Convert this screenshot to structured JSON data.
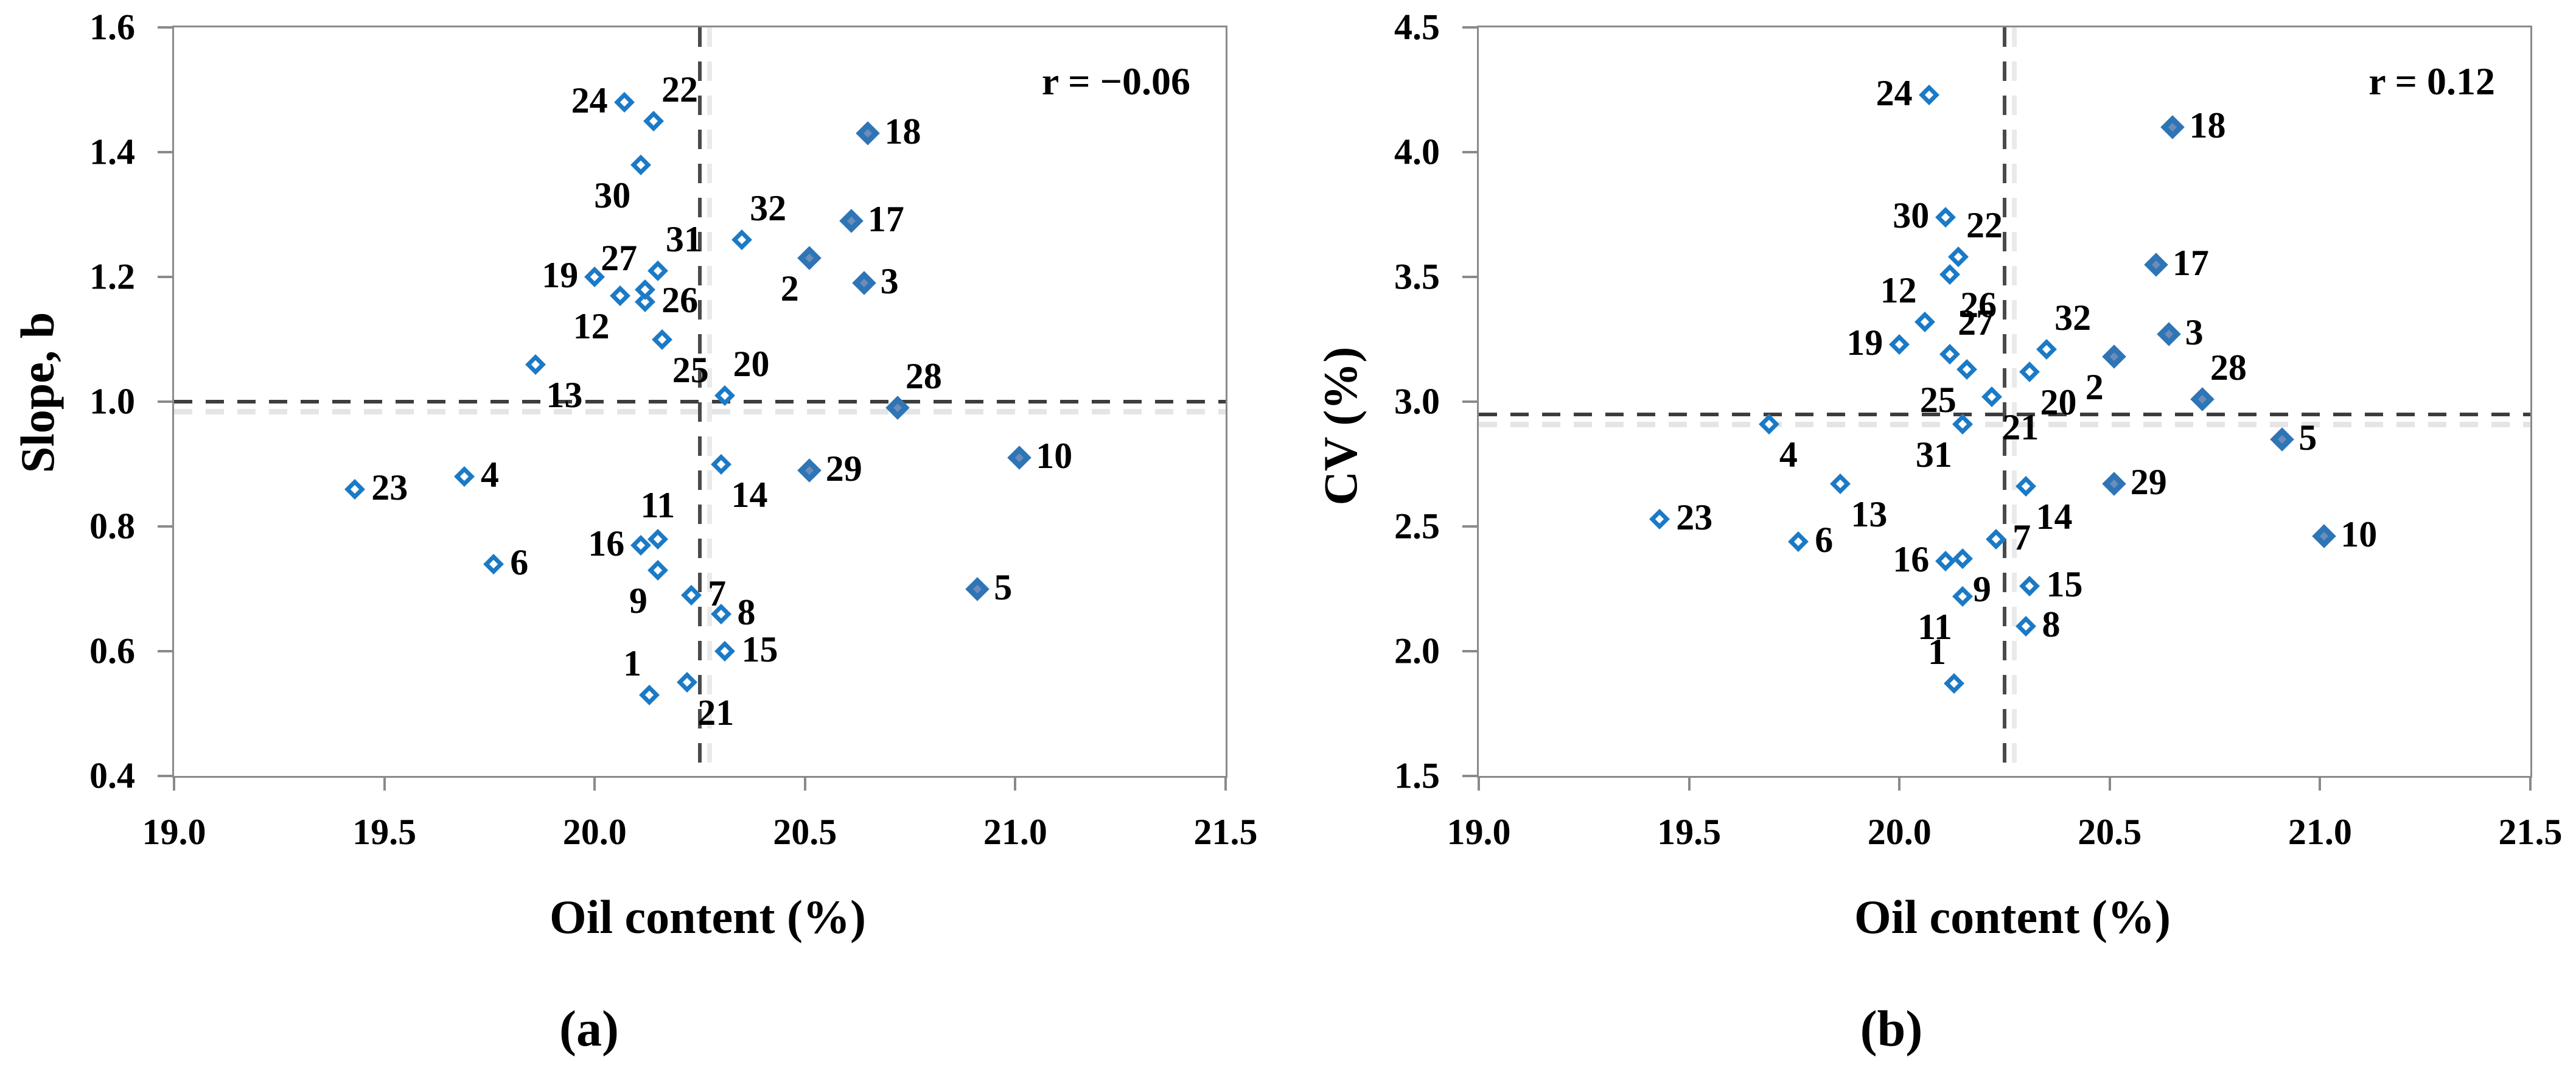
{
  "figure": {
    "background": "#ffffff",
    "colors": {
      "open_marker_border": "#1b7ac6",
      "filled_marker": "#2e75b6",
      "filled_marker_inner": "#6d8cba",
      "axis_line": "#8a8a8a",
      "dash_line": "#3d3d3d",
      "dash_shadow": "#e2e2e2",
      "text": "#000000"
    }
  },
  "chart_data": [
    {
      "type": "scatter",
      "panel_label": "(a)",
      "annotation": "r = −0.06",
      "xlabel": "Oil content (%)",
      "ylabel": "Slope, b",
      "xlim": [
        19.0,
        21.5
      ],
      "ylim": [
        0.4,
        1.6
      ],
      "x_ticks": [
        "19.0",
        "19.5",
        "20.0",
        "20.5",
        "21.0",
        "21.5"
      ],
      "y_ticks": [
        "1.6",
        "1.4",
        "1.2",
        "1.0",
        "0.8",
        "0.6",
        "0.4"
      ],
      "grid": false,
      "ref_line_x": 20.25,
      "ref_line_y": 1.0,
      "points": [
        {
          "id": "1",
          "x": 20.13,
          "y": 0.53,
          "filled": false,
          "label_pos": "above-left"
        },
        {
          "id": "2",
          "x": 20.51,
          "y": 1.23,
          "filled": true,
          "label_pos": "below-left"
        },
        {
          "id": "3",
          "x": 20.64,
          "y": 1.19,
          "filled": true,
          "label_pos": "right"
        },
        {
          "id": "4",
          "x": 19.69,
          "y": 0.88,
          "filled": false,
          "label_pos": "right"
        },
        {
          "id": "5",
          "x": 20.91,
          "y": 0.7,
          "filled": true,
          "label_pos": "right"
        },
        {
          "id": "6",
          "x": 19.76,
          "y": 0.74,
          "filled": false,
          "label_pos": "right"
        },
        {
          "id": "7",
          "x": 20.23,
          "y": 0.69,
          "filled": false,
          "label_pos": "right"
        },
        {
          "id": "8",
          "x": 20.3,
          "y": 0.66,
          "filled": false,
          "label_pos": "right"
        },
        {
          "id": "9",
          "x": 20.15,
          "y": 0.73,
          "filled": false,
          "label_pos": "below-left"
        },
        {
          "id": "10",
          "x": 21.01,
          "y": 0.91,
          "filled": true,
          "label_pos": "right"
        },
        {
          "id": "11",
          "x": 20.15,
          "y": 0.78,
          "filled": false,
          "label_pos": "above"
        },
        {
          "id": "12",
          "x": 20.06,
          "y": 1.17,
          "filled": false,
          "label_pos": "below-left"
        },
        {
          "id": "13",
          "x": 19.86,
          "y": 1.06,
          "filled": false,
          "label_pos": "below-right"
        },
        {
          "id": "14",
          "x": 20.3,
          "y": 0.9,
          "filled": false,
          "label_pos": "below-right"
        },
        {
          "id": "15",
          "x": 20.31,
          "y": 0.6,
          "filled": false,
          "label_pos": "right"
        },
        {
          "id": "16",
          "x": 20.11,
          "y": 0.77,
          "filled": false,
          "label_pos": "left"
        },
        {
          "id": "17",
          "x": 20.61,
          "y": 1.29,
          "filled": true,
          "label_pos": "right"
        },
        {
          "id": "18",
          "x": 20.65,
          "y": 1.43,
          "filled": true,
          "label_pos": "right"
        },
        {
          "id": "19",
          "x": 20.0,
          "y": 1.2,
          "filled": false,
          "label_pos": "left"
        },
        {
          "id": "20",
          "x": 20.31,
          "y": 1.01,
          "filled": false,
          "label_pos": "above-right"
        },
        {
          "id": "21",
          "x": 20.22,
          "y": 0.55,
          "filled": false,
          "label_pos": "below-right"
        },
        {
          "id": "22",
          "x": 20.14,
          "y": 1.45,
          "filled": false,
          "label_pos": "above-right"
        },
        {
          "id": "23",
          "x": 19.43,
          "y": 0.86,
          "filled": false,
          "label_pos": "right"
        },
        {
          "id": "24",
          "x": 20.07,
          "y": 1.48,
          "filled": false,
          "label_pos": "left"
        },
        {
          "id": "25",
          "x": 20.16,
          "y": 1.1,
          "filled": false,
          "label_pos": "below-right"
        },
        {
          "id": "26",
          "x": 20.12,
          "y": 1.16,
          "filled": false,
          "label_pos": "right"
        },
        {
          "id": "27",
          "x": 20.12,
          "y": 1.18,
          "filled": false,
          "label_pos": "above-left"
        },
        {
          "id": "28",
          "x": 20.72,
          "y": 0.99,
          "filled": true,
          "label_pos": "above-right"
        },
        {
          "id": "29",
          "x": 20.51,
          "y": 0.89,
          "filled": true,
          "label_pos": "right"
        },
        {
          "id": "30",
          "x": 20.11,
          "y": 1.38,
          "filled": false,
          "label_pos": "below-left"
        },
        {
          "id": "31",
          "x": 20.15,
          "y": 1.21,
          "filled": false,
          "label_pos": "above-right"
        },
        {
          "id": "32",
          "x": 20.35,
          "y": 1.26,
          "filled": false,
          "label_pos": "above-right"
        }
      ]
    },
    {
      "type": "scatter",
      "panel_label": "(b)",
      "annotation": "r = 0.12",
      "xlabel": "Oil content (%)",
      "ylabel": "CV (%)",
      "xlim": [
        19.0,
        21.5
      ],
      "ylim": [
        1.5,
        4.5
      ],
      "x_ticks": [
        "19.0",
        "19.5",
        "20.0",
        "20.5",
        "21.0",
        "21.5"
      ],
      "y_ticks": [
        "4.5",
        "4.0",
        "3.5",
        "3.0",
        "2.5",
        "2.0",
        "1.5"
      ],
      "grid": false,
      "ref_line_x": 20.25,
      "ref_line_y": 2.95,
      "points": [
        {
          "id": "1",
          "x": 20.13,
          "y": 1.87,
          "filled": false,
          "label_pos": "above-left"
        },
        {
          "id": "2",
          "x": 20.51,
          "y": 3.18,
          "filled": true,
          "label_pos": "below-left"
        },
        {
          "id": "3",
          "x": 20.64,
          "y": 3.27,
          "filled": true,
          "label_pos": "right"
        },
        {
          "id": "4",
          "x": 19.69,
          "y": 2.91,
          "filled": false,
          "label_pos": "below-right"
        },
        {
          "id": "5",
          "x": 20.91,
          "y": 2.85,
          "filled": true,
          "label_pos": "right"
        },
        {
          "id": "6",
          "x": 19.76,
          "y": 2.44,
          "filled": false,
          "label_pos": "right"
        },
        {
          "id": "7",
          "x": 20.23,
          "y": 2.45,
          "filled": false,
          "label_pos": "right"
        },
        {
          "id": "8",
          "x": 20.3,
          "y": 2.1,
          "filled": false,
          "label_pos": "right"
        },
        {
          "id": "9",
          "x": 20.15,
          "y": 2.37,
          "filled": false,
          "label_pos": "below-right"
        },
        {
          "id": "10",
          "x": 21.01,
          "y": 2.46,
          "filled": true,
          "label_pos": "right"
        },
        {
          "id": "11",
          "x": 20.15,
          "y": 2.22,
          "filled": false,
          "label_pos": "below-left"
        },
        {
          "id": "12",
          "x": 20.06,
          "y": 3.32,
          "filled": false,
          "label_pos": "above-left"
        },
        {
          "id": "13",
          "x": 19.86,
          "y": 2.67,
          "filled": false,
          "label_pos": "below-right"
        },
        {
          "id": "14",
          "x": 20.3,
          "y": 2.66,
          "filled": false,
          "label_pos": "below-right"
        },
        {
          "id": "15",
          "x": 20.31,
          "y": 2.26,
          "filled": false,
          "label_pos": "right"
        },
        {
          "id": "16",
          "x": 20.11,
          "y": 2.36,
          "filled": false,
          "label_pos": "left"
        },
        {
          "id": "17",
          "x": 20.61,
          "y": 3.55,
          "filled": true,
          "label_pos": "right"
        },
        {
          "id": "18",
          "x": 20.65,
          "y": 4.1,
          "filled": true,
          "label_pos": "right"
        },
        {
          "id": "19",
          "x": 20.0,
          "y": 3.23,
          "filled": false,
          "label_pos": "left"
        },
        {
          "id": "20",
          "x": 20.31,
          "y": 3.12,
          "filled": false,
          "label_pos": "below-right"
        },
        {
          "id": "21",
          "x": 20.22,
          "y": 3.02,
          "filled": false,
          "label_pos": "below-right"
        },
        {
          "id": "22",
          "x": 20.14,
          "y": 3.58,
          "filled": false,
          "label_pos": "above-right"
        },
        {
          "id": "23",
          "x": 19.43,
          "y": 2.53,
          "filled": false,
          "label_pos": "right"
        },
        {
          "id": "24",
          "x": 20.07,
          "y": 4.23,
          "filled": false,
          "label_pos": "left"
        },
        {
          "id": "25",
          "x": 20.16,
          "y": 3.13,
          "filled": false,
          "label_pos": "below-left"
        },
        {
          "id": "26",
          "x": 20.12,
          "y": 3.51,
          "filled": false,
          "label_pos": "below-right"
        },
        {
          "id": "27",
          "x": 20.12,
          "y": 3.19,
          "filled": false,
          "label_pos": "above-right"
        },
        {
          "id": "28",
          "x": 20.72,
          "y": 3.01,
          "filled": true,
          "label_pos": "above-right"
        },
        {
          "id": "29",
          "x": 20.51,
          "y": 2.67,
          "filled": true,
          "label_pos": "right"
        },
        {
          "id": "30",
          "x": 20.11,
          "y": 3.74,
          "filled": false,
          "label_pos": "left"
        },
        {
          "id": "31",
          "x": 20.15,
          "y": 2.91,
          "filled": false,
          "label_pos": "below-left"
        },
        {
          "id": "32",
          "x": 20.35,
          "y": 3.21,
          "filled": false,
          "label_pos": "above-right"
        }
      ]
    }
  ]
}
